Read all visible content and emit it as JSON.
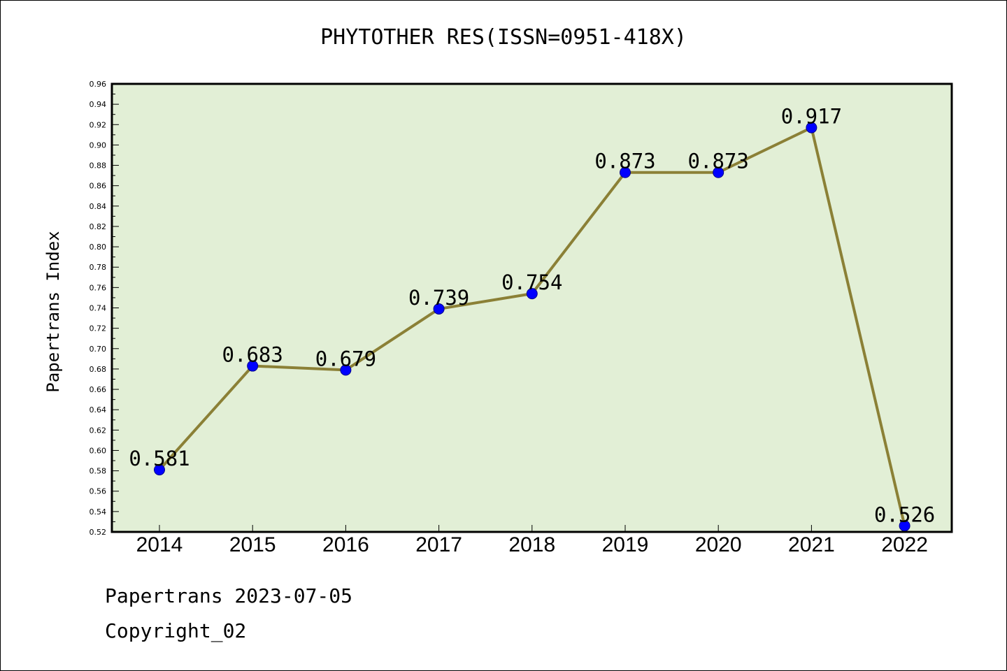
{
  "chart_data": {
    "type": "line",
    "title": "PHYTOTHER RES(ISSN=0951-418X)",
    "xlabel": "",
    "ylabel": "Papertrans Index",
    "categories": [
      "2014",
      "2015",
      "2016",
      "2017",
      "2018",
      "2019",
      "2020",
      "2021",
      "2022"
    ],
    "values": [
      0.581,
      0.683,
      0.679,
      0.739,
      0.754,
      0.873,
      0.873,
      0.917,
      0.526
    ],
    "data_labels": [
      "0.581",
      "0.683",
      "0.679",
      "0.739",
      "0.754",
      "0.873",
      "0.873",
      "0.917",
      "0.526"
    ],
    "ylim": [
      0.52,
      0.96
    ],
    "yticks": [
      "0.52",
      "0.54",
      "0.56",
      "0.58",
      "0.60",
      "0.62",
      "0.64",
      "0.66",
      "0.68",
      "0.70",
      "0.72",
      "0.74",
      "0.76",
      "0.78",
      "0.80",
      "0.82",
      "0.84",
      "0.86",
      "0.88",
      "0.90",
      "0.92",
      "0.94",
      "0.96"
    ],
    "grid": false,
    "colors": {
      "plot_background": "#e2efd6",
      "line": "#8b8036",
      "marker": "#0000ff"
    }
  },
  "footer": {
    "line1": "Papertrans 2023-07-05",
    "line2": "Copyright_02"
  }
}
